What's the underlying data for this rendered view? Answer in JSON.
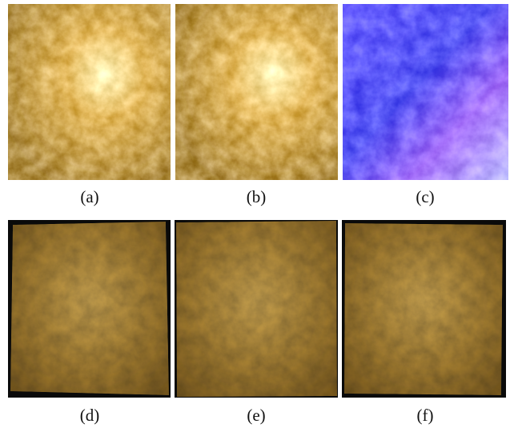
{
  "figure": {
    "panels": [
      "(a)",
      "(b)",
      "(c)",
      "(d)",
      "(e)",
      "(f)"
    ]
  }
}
